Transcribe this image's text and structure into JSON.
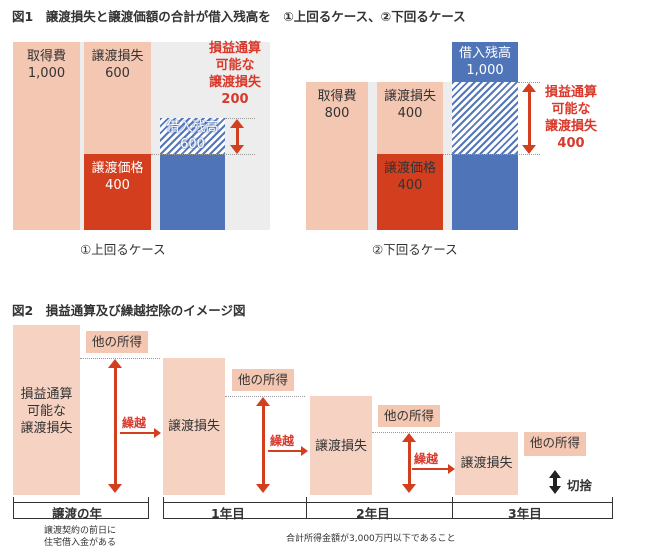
{
  "fig1": {
    "title": "図1　譲渡損失と譲渡価額の合計が借入残高を　①上回るケース、②下回るケース",
    "case1": {
      "acq": {
        "label": "取得費",
        "value": "1,000"
      },
      "loss": {
        "label": "譲渡損失",
        "value": "600"
      },
      "price": {
        "label": "譲渡価格",
        "value": "400"
      },
      "loan": {
        "label": "借入残高",
        "value": "600"
      },
      "deductible": {
        "l1": "損益通算",
        "l2": "可能な",
        "l3": "譲渡損失",
        "value": "200"
      },
      "caption": "①上回るケース"
    },
    "case2": {
      "acq": {
        "label": "取得費",
        "value": "800"
      },
      "loss": {
        "label": "譲渡損失",
        "value": "400"
      },
      "price": {
        "label": "譲渡価格",
        "value": "400"
      },
      "loan": {
        "label": "借入残高",
        "value": "1,000"
      },
      "deductible": {
        "l1": "損益通算",
        "l2": "可能な",
        "l3": "譲渡損失",
        "value": "400"
      },
      "caption": "②下回るケース"
    }
  },
  "fig2": {
    "title": "図2　損益通算及び繰越控除のイメージ図",
    "first": {
      "l1": "損益通算",
      "l2": "可能な",
      "l3": "譲渡損失"
    },
    "other_income": "他の所得",
    "loss_label": "譲渡損失",
    "carry": "繰越",
    "cutoff": "切捨",
    "years": [
      "譲渡の年",
      "1年目",
      "2年目",
      "3年目"
    ],
    "note_left_l1": "譲渡契約の前日に",
    "note_left_l2": "住宅借入金がある",
    "note_right": "合計所得金額が3,000万円以下であること"
  },
  "colors": {
    "pink": "#f3c7b2",
    "red": "#d23e1e",
    "blue": "#4f74b8",
    "text_red": "#d9392b"
  }
}
